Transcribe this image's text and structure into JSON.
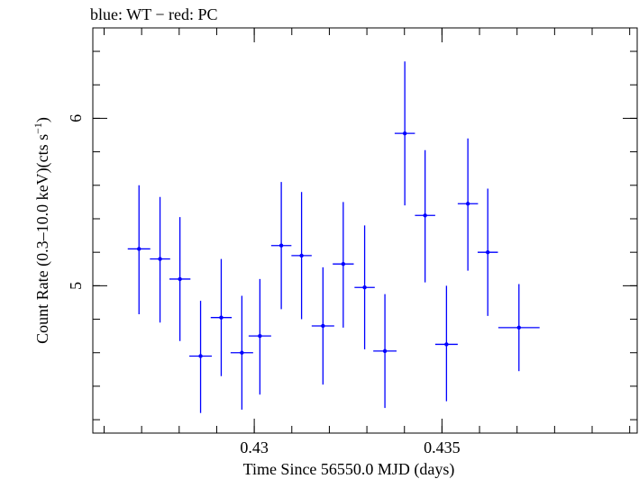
{
  "chart_data": {
    "type": "scatter",
    "title": "blue: WT − red: PC",
    "xlabel": "Time Since 56550.0 MJD (days)",
    "ylabel_parts": {
      "pre": "Count Rate (0.3–10.0 keV)(cts s",
      "sup": "−1",
      "post": ")"
    },
    "xlim": [
      0.4257,
      0.4402
    ],
    "ylim": [
      4.12,
      6.54
    ],
    "x_major_ticks": [
      0.43,
      0.435
    ],
    "x_tick_labels": [
      "0.43",
      "0.435"
    ],
    "x_minor_step": 0.001,
    "y_major_ticks": [
      5,
      6
    ],
    "y_tick_labels": [
      "5",
      "6"
    ],
    "y_minor_step": 0.2,
    "series": [
      {
        "name": "WT",
        "color": "#0000ff",
        "points": [
          {
            "x": 0.42693,
            "xerr": 0.0003,
            "y": 5.22,
            "yerr_lo": 0.39,
            "yerr_hi": 0.38
          },
          {
            "x": 0.42749,
            "xerr": 0.00027,
            "y": 5.16,
            "yerr_lo": 0.38,
            "yerr_hi": 0.37
          },
          {
            "x": 0.42802,
            "xerr": 0.00028,
            "y": 5.04,
            "yerr_lo": 0.37,
            "yerr_hi": 0.37
          },
          {
            "x": 0.42857,
            "xerr": 0.0003,
            "y": 4.58,
            "yerr_lo": 0.34,
            "yerr_hi": 0.33
          },
          {
            "x": 0.42912,
            "xerr": 0.00028,
            "y": 4.81,
            "yerr_lo": 0.35,
            "yerr_hi": 0.35
          },
          {
            "x": 0.42967,
            "xerr": 0.0003,
            "y": 4.6,
            "yerr_lo": 0.34,
            "yerr_hi": 0.34
          },
          {
            "x": 0.43015,
            "xerr": 0.0003,
            "y": 4.7,
            "yerr_lo": 0.35,
            "yerr_hi": 0.34
          },
          {
            "x": 0.43072,
            "xerr": 0.00027,
            "y": 5.24,
            "yerr_lo": 0.38,
            "yerr_hi": 0.38
          },
          {
            "x": 0.43126,
            "xerr": 0.00027,
            "y": 5.18,
            "yerr_lo": 0.38,
            "yerr_hi": 0.38
          },
          {
            "x": 0.43183,
            "xerr": 0.0003,
            "y": 4.76,
            "yerr_lo": 0.35,
            "yerr_hi": 0.35
          },
          {
            "x": 0.43237,
            "xerr": 0.00028,
            "y": 5.13,
            "yerr_lo": 0.38,
            "yerr_hi": 0.37
          },
          {
            "x": 0.43294,
            "xerr": 0.00027,
            "y": 4.99,
            "yerr_lo": 0.37,
            "yerr_hi": 0.37
          },
          {
            "x": 0.43348,
            "xerr": 0.00031,
            "y": 4.61,
            "yerr_lo": 0.34,
            "yerr_hi": 0.34
          },
          {
            "x": 0.43401,
            "xerr": 0.00027,
            "y": 5.91,
            "yerr_lo": 0.43,
            "yerr_hi": 0.43
          },
          {
            "x": 0.43455,
            "xerr": 0.00027,
            "y": 5.42,
            "yerr_lo": 0.4,
            "yerr_hi": 0.39
          },
          {
            "x": 0.43512,
            "xerr": 0.0003,
            "y": 4.65,
            "yerr_lo": 0.34,
            "yerr_hi": 0.35
          },
          {
            "x": 0.43569,
            "xerr": 0.00027,
            "y": 5.49,
            "yerr_lo": 0.4,
            "yerr_hi": 0.39
          },
          {
            "x": 0.43622,
            "xerr": 0.00027,
            "y": 5.2,
            "yerr_lo": 0.38,
            "yerr_hi": 0.38
          },
          {
            "x": 0.43705,
            "xerr": 0.00055,
            "y": 4.75,
            "yerr_lo": 0.26,
            "yerr_hi": 0.26
          }
        ]
      }
    ]
  }
}
